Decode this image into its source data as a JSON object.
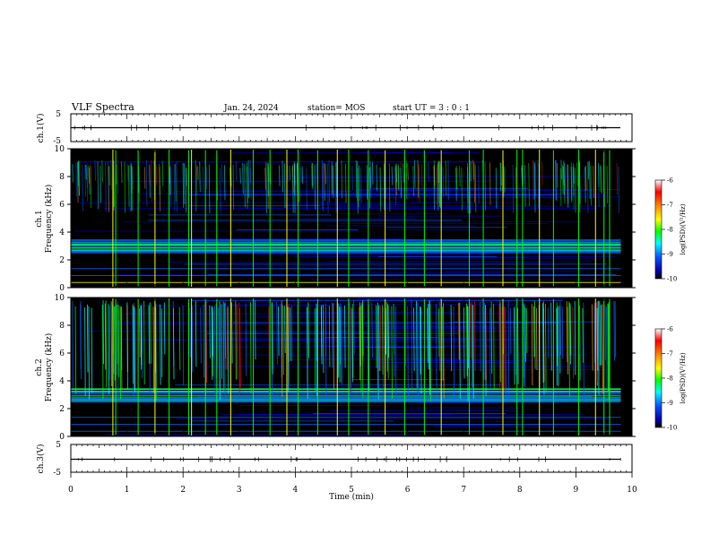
{
  "header": {
    "title": "VLF Spectra",
    "date": "Jan. 24, 2024",
    "station": "station= MOS",
    "start": "start UT =  3 : 0  : 1"
  },
  "panels": {
    "ch1_wave": {
      "label": "ch.1(V)",
      "ticks": [
        "5",
        "-5"
      ]
    },
    "ch1_spec": {
      "label_line1": "ch.1",
      "label_line2": "Frequency (kHz)"
    },
    "ch2_spec": {
      "label_line1": "ch.2",
      "label_line2": "Frequency (kHz)"
    },
    "ch3_wave": {
      "label": "ch.3(V)",
      "ticks": [
        "5",
        "-5"
      ]
    }
  },
  "colorbar": {
    "label": "log(PSD)(V²/Hz)",
    "ticks": [
      "-6",
      "-7",
      "-8",
      "-9",
      "-10"
    ],
    "colors": [
      "#ff0000",
      "#ff8800",
      "#ffff00",
      "#00ff00",
      "#00ffff",
      "#0066ff",
      "#0000cc",
      "#000000"
    ]
  },
  "chart_data": {
    "type": "heatmap",
    "title": "VLF Spectra",
    "xlabel": "Time (min)",
    "ylabel": "Frequency (kHz)",
    "xlim": [
      0,
      10
    ],
    "ylim": [
      0,
      10
    ],
    "xticks": [
      "0",
      "1",
      "2",
      "3",
      "4",
      "5",
      "6",
      "7",
      "8",
      "9",
      "10"
    ],
    "yticks": [
      "0",
      "2",
      "4",
      "6",
      "8",
      "10"
    ],
    "data_end_min": 9.8,
    "colorbar_range": [
      -10,
      -6
    ],
    "series": [
      {
        "name": "ch.1",
        "noise_band_khz": [
          2.5,
          3.5
        ],
        "whistler_band_khz": [
          7.8,
          9.2
        ]
      },
      {
        "name": "ch.2",
        "noise_band_khz": [
          2.5,
          3.5
        ],
        "whistler_band_khz": [
          6.0,
          9.8
        ]
      }
    ],
    "sferic_times_min": [
      0.75,
      0.8,
      1.2,
      1.5,
      1.75,
      2.1,
      2.15,
      2.4,
      2.6,
      2.85,
      3.25,
      3.55,
      3.85,
      4.05,
      4.4,
      4.75,
      4.95,
      5.3,
      5.6,
      5.95,
      6.3,
      6.6,
      7.1,
      7.35,
      7.7,
      7.95,
      8.05,
      8.35,
      8.6,
      9.05,
      9.35,
      9.5,
      9.6
    ]
  }
}
